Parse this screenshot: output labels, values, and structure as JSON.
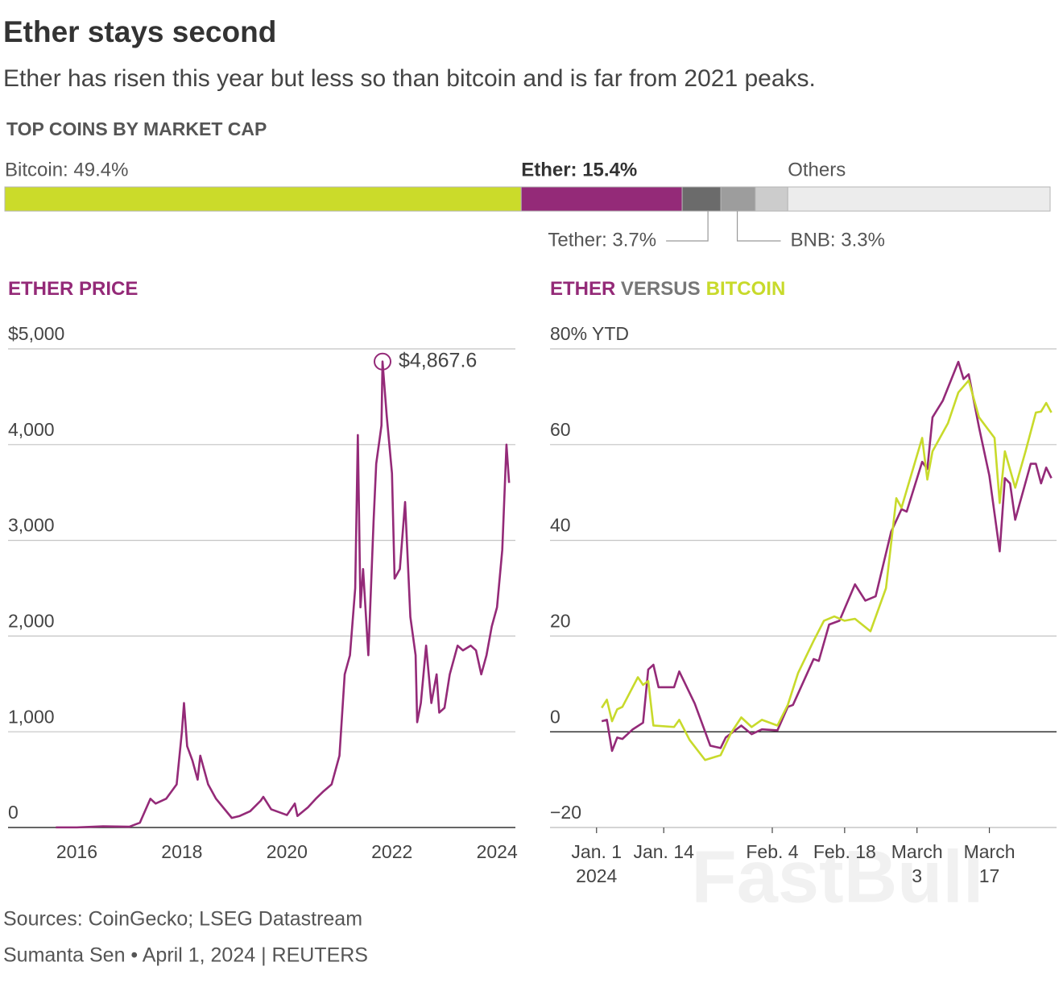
{
  "title": "Ether stays second",
  "subtitle": "Ether has risen this year but less so than bitcoin and is far from 2021 peaks.",
  "source": "Sources: CoinGecko; LSEG Datastream",
  "byline": "Sumanta Sen • April 1, 2024 | REUTERS",
  "watermark": "FastBull",
  "chart_data": [
    {
      "type": "stacked_bar",
      "title": "TOP COINS BY MARKET CAP",
      "categories": [
        "Bitcoin: 49.4%",
        "Ether: 15.4%",
        "Tether: 3.7%",
        "BNB: 3.3%",
        null,
        "Others"
      ],
      "values": [
        49.4,
        15.4,
        3.7,
        3.3,
        3.1,
        25.1
      ],
      "colors": [
        "#cbdb2a",
        "#942a78",
        "#6b6b6b",
        "#9d9d9d",
        "#cccccc",
        "#ececec"
      ],
      "highlight": 1,
      "xlim": [
        0,
        100
      ]
    },
    {
      "type": "line",
      "title": "ETHER PRICE",
      "title_color": "#942a78",
      "xlim": [
        2014.69,
        2024.35
      ],
      "xticks": [
        2016,
        2018,
        2020,
        2022,
        2024
      ],
      "ylim": [
        0,
        5000
      ],
      "yticks": [
        {
          "value": 0,
          "label": "0"
        },
        {
          "value": 1000,
          "label": "1,000"
        },
        {
          "value": 2000,
          "label": "2,000"
        },
        {
          "value": 3000,
          "label": "3,000"
        },
        {
          "value": 4000,
          "label": "4,000"
        },
        {
          "value": 5000,
          "label": "$5,000"
        }
      ],
      "grid": true,
      "zero_line": true,
      "annotation": "$4,867.6",
      "series": [
        {
          "color": "#942a78",
          "x": [
            2015.6,
            2016.0,
            2016.5,
            2017.0,
            2017.2,
            2017.4,
            2017.5,
            2017.7,
            2017.9,
            2018.0,
            2018.04,
            2018.1,
            2018.2,
            2018.3,
            2018.35,
            2018.5,
            2018.65,
            2018.8,
            2018.95,
            2019.1,
            2019.3,
            2019.5,
            2019.55,
            2019.7,
            2019.9,
            2020.0,
            2020.15,
            2020.2,
            2020.4,
            2020.55,
            2020.7,
            2020.85,
            2021.0,
            2021.1,
            2021.2,
            2021.3,
            2021.35,
            2021.4,
            2021.45,
            2021.55,
            2021.65,
            2021.7,
            2021.8,
            2021.82,
            2021.9,
            2022.0,
            2022.05,
            2022.15,
            2022.25,
            2022.35,
            2022.45,
            2022.48,
            2022.55,
            2022.65,
            2022.75,
            2022.85,
            2022.9,
            2023.0,
            2023.1,
            2023.25,
            2023.35,
            2023.5,
            2023.6,
            2023.7,
            2023.8,
            2023.9,
            2024.0,
            2024.1,
            2024.18,
            2024.23
          ],
          "values": [
            1,
            1,
            12,
            8,
            50,
            300,
            250,
            300,
            450,
            1000,
            1300,
            850,
            700,
            500,
            750,
            450,
            300,
            200,
            100,
            120,
            170,
            280,
            320,
            190,
            150,
            130,
            250,
            120,
            210,
            300,
            380,
            450,
            750,
            1600,
            1800,
            2500,
            4100,
            2300,
            2700,
            1800,
            3200,
            3800,
            4200,
            4867.6,
            4300,
            3700,
            2600,
            2700,
            3400,
            2200,
            1800,
            1100,
            1300,
            1900,
            1300,
            1600,
            1200,
            1250,
            1600,
            1900,
            1850,
            1900,
            1850,
            1600,
            1800,
            2100,
            2300,
            2900,
            4000,
            3600
          ]
        }
      ]
    },
    {
      "type": "line",
      "title": "VERSUS",
      "title_color": "#777777",
      "legend": "title",
      "xlim": [
        "2023-12-23",
        "2024-03-30"
      ],
      "xticks": [
        {
          "value": "2024-01-01",
          "label": "Jan. 1\n2024"
        },
        {
          "value": "2024-01-14",
          "label": "Jan. 14"
        },
        {
          "value": "2024-02-04",
          "label": "Feb. 4"
        },
        {
          "value": "2024-02-18",
          "label": "Feb. 18"
        },
        {
          "value": "2024-03-03",
          "label": "March\n3"
        },
        {
          "value": "2024-03-17",
          "label": "March\n17"
        }
      ],
      "xtick_marks": true,
      "ylim": [
        -20,
        80
      ],
      "yticks": [
        {
          "value": -20,
          "label": "−20"
        },
        0,
        20,
        40,
        60,
        {
          "value": 80,
          "label": "80% YTD"
        }
      ],
      "grid": true,
      "zero_line": true,
      "series": [
        {
          "name": "ETHER",
          "color": "#942a78",
          "x": [
            "2024-01-02",
            "2024-01-03",
            "2024-01-04",
            "2024-01-05",
            "2024-01-06",
            "2024-01-08",
            "2024-01-10",
            "2024-01-11",
            "2024-01-12",
            "2024-01-13",
            "2024-01-16",
            "2024-01-17",
            "2024-01-20",
            "2024-01-23",
            "2024-01-25",
            "2024-01-26",
            "2024-01-29",
            "2024-01-31",
            "2024-02-02",
            "2024-02-05",
            "2024-02-07",
            "2024-02-08",
            "2024-02-12",
            "2024-02-13",
            "2024-02-15",
            "2024-02-17",
            "2024-02-20",
            "2024-02-22",
            "2024-02-24",
            "2024-02-27",
            "2024-02-29",
            "2024-03-01",
            "2024-03-04",
            "2024-03-05",
            "2024-03-06",
            "2024-03-08",
            "2024-03-11",
            "2024-03-12",
            "2024-03-13",
            "2024-03-15",
            "2024-03-17",
            "2024-03-19",
            "2024-03-20",
            "2024-03-21",
            "2024-03-22",
            "2024-03-25",
            "2024-03-26",
            "2024-03-27",
            "2024-03-28",
            "2024-03-29"
          ],
          "values": [
            2.2,
            2.5,
            -4,
            -1.2,
            -1.5,
            0.5,
            1.9,
            13,
            14,
            9.3,
            9.3,
            12.6,
            5.9,
            -2.9,
            -3.4,
            -1.2,
            1.3,
            -0.5,
            0.5,
            0.3,
            5.2,
            5.6,
            15.2,
            14.8,
            22.4,
            23.2,
            30.8,
            27.4,
            28.3,
            41.8,
            46.5,
            46,
            56.4,
            54.9,
            65.7,
            69.2,
            77.3,
            73.7,
            74.7,
            63.6,
            53.5,
            37.7,
            53,
            51.9,
            44.3,
            56,
            56,
            51.9,
            55.2,
            53
          ]
        },
        {
          "name": "BITCOIN",
          "color": "#c8da2b",
          "x": [
            "2024-01-02",
            "2024-01-03",
            "2024-01-04",
            "2024-01-05",
            "2024-01-06",
            "2024-01-09",
            "2024-01-10",
            "2024-01-11",
            "2024-01-12",
            "2024-01-16",
            "2024-01-17",
            "2024-01-19",
            "2024-01-22",
            "2024-01-25",
            "2024-01-27",
            "2024-01-29",
            "2024-01-31",
            "2024-02-02",
            "2024-02-05",
            "2024-02-07",
            "2024-02-09",
            "2024-02-12",
            "2024-02-14",
            "2024-02-16",
            "2024-02-18",
            "2024-02-20",
            "2024-02-23",
            "2024-02-26",
            "2024-02-28",
            "2024-02-29",
            "2024-03-04",
            "2024-03-05",
            "2024-03-06",
            "2024-03-09",
            "2024-03-11",
            "2024-03-13",
            "2024-03-15",
            "2024-03-18",
            "2024-03-19",
            "2024-03-20",
            "2024-03-22",
            "2024-03-24",
            "2024-03-26",
            "2024-03-27",
            "2024-03-28",
            "2024-03-29"
          ],
          "values": [
            5,
            6.7,
            2.2,
            4.7,
            5.2,
            11.4,
            9.8,
            10.6,
            1.3,
            1,
            2.5,
            -1.7,
            -5.9,
            -4.9,
            -0.3,
            3,
            1,
            2.5,
            1.3,
            5.6,
            12.3,
            19,
            23.2,
            24.1,
            23.2,
            23.6,
            21,
            30,
            48.8,
            46.8,
            61.4,
            52.7,
            58.6,
            64.5,
            70.9,
            73.4,
            65.7,
            61.4,
            47.8,
            58.6,
            51,
            58.6,
            66.7,
            66.9,
            68.7,
            66.7
          ]
        }
      ]
    }
  ]
}
